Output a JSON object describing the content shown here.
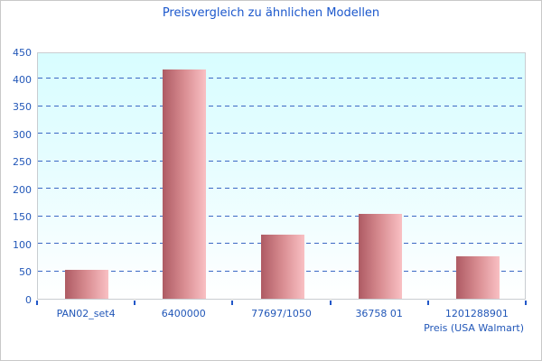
{
  "window": {
    "background_color": "#ffffff",
    "border_color": "#c9c9c9"
  },
  "chart_data": {
    "type": "bar",
    "title": "Preisvergleich zu ähnlichen Modellen",
    "categories": [
      "PAN02_set4",
      "6400000",
      "77697/1050",
      "36758 01",
      "1201288901"
    ],
    "values": [
      53,
      417,
      116,
      155,
      77
    ],
    "xlabel": "Preis (USA Walmart)",
    "ylabel": "",
    "ylim": [
      0,
      450
    ],
    "yticks": [
      0,
      50,
      100,
      150,
      200,
      250,
      300,
      350,
      400,
      450
    ],
    "grid": "horizontal-dashed",
    "legend": "none",
    "colors": {
      "title_text": "#1b57cc",
      "axis_text": "#2257b8",
      "gridline": "#3b68c4",
      "tick_mark": "#2257c8",
      "bar_gradient_left": "#ae5b63",
      "bar_gradient_right": "#f9c0c3",
      "plot_bg_top": "#d8fdff",
      "plot_bg_bottom": "#ffffff",
      "plot_border": "#c9cdd1"
    }
  }
}
